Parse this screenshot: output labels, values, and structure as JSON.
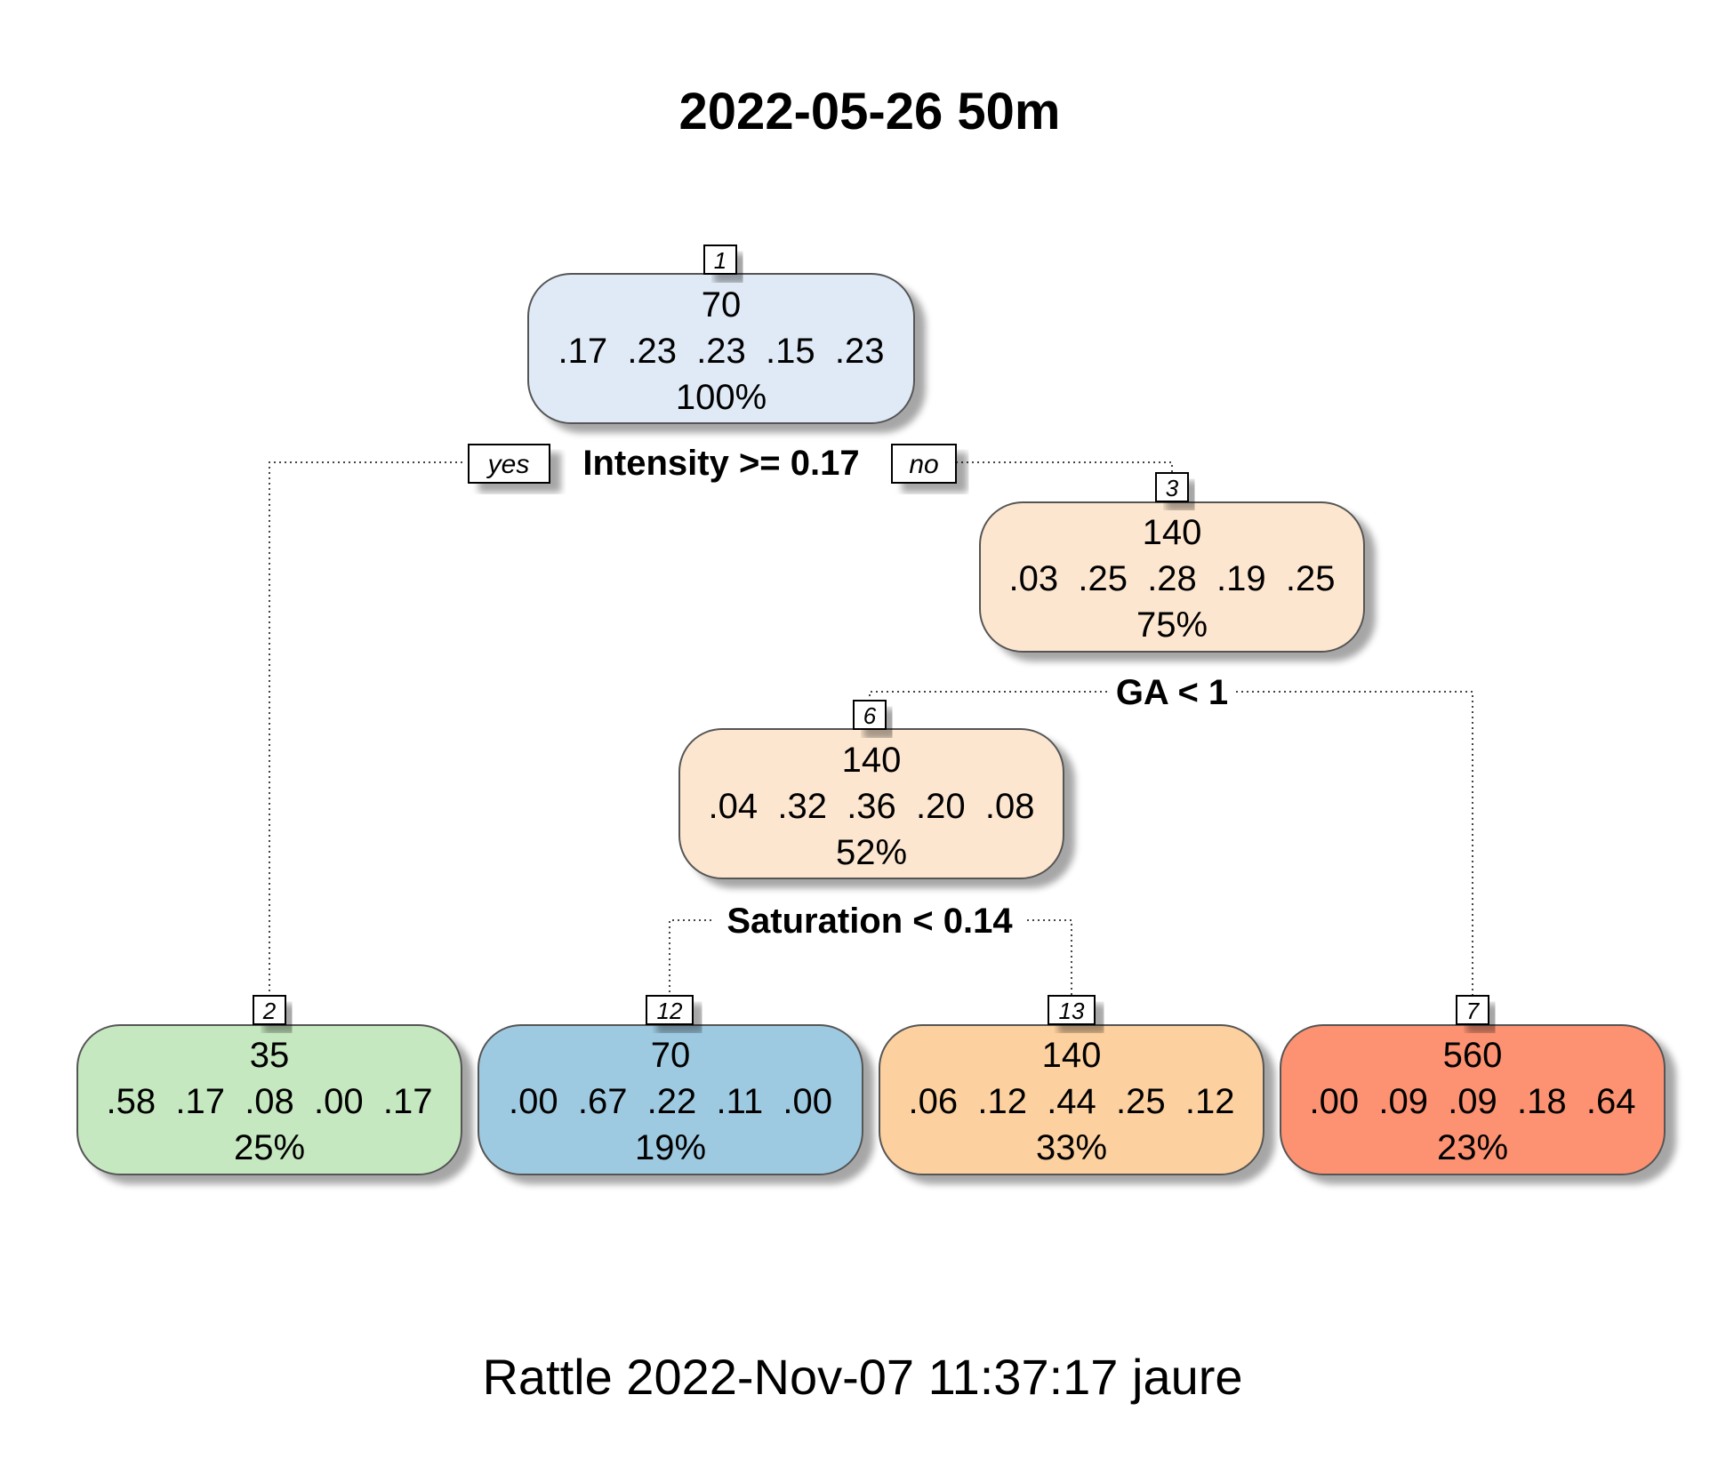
{
  "title": "2022-05-26 50m",
  "footer": "Rattle 2022-Nov-07 11:37:17 jaure",
  "edge_tags": {
    "yes": "yes",
    "no": "no"
  },
  "splits": {
    "n1": "Intensity >= 0.17",
    "n3": "GA < 1",
    "n6": "Saturation < 0.14"
  },
  "nodes": {
    "n1": {
      "id": "1",
      "value": "70",
      "probs": ".17  .23  .23  .15  .23",
      "pct": "100%",
      "color": "#dfeaf6"
    },
    "n3": {
      "id": "3",
      "value": "140",
      "probs": ".03  .25  .28  .19  .25",
      "pct": "75%",
      "color": "#fde6cf"
    },
    "n6": {
      "id": "6",
      "value": "140",
      "probs": ".04  .32  .36  .20  .08",
      "pct": "52%",
      "color": "#fde6cf"
    },
    "n2": {
      "id": "2",
      "value": "35",
      "probs": ".58  .17  .08  .00  .17",
      "pct": "25%",
      "color": "#c6e8c0"
    },
    "n12": {
      "id": "12",
      "value": "70",
      "probs": ".00  .67  .22  .11  .00",
      "pct": "19%",
      "color": "#9ecae1"
    },
    "n13": {
      "id": "13",
      "value": "140",
      "probs": ".06  .12  .44  .25  .12",
      "pct": "33%",
      "color": "#fcd09f"
    },
    "n7": {
      "id": "7",
      "value": "560",
      "probs": ".00  .09  .09  .18  .64",
      "pct": "23%",
      "color": "#fc9272"
    }
  }
}
